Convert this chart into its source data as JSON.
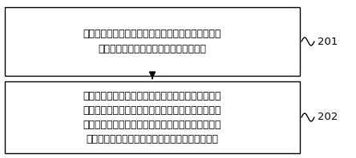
{
  "box1_text_line1": "第一压缩机和第二压缩机均运转时，实时获取第一压",
  "box1_text_line2": "缩机的当前油温和第二压缩机的当前油温",
  "box2_text_line1": "在第一压缩机的当前油温不高于第一油温阈值、且第",
  "box2_text_line2": "二压缩机的当前油温不高于第二油温阈值时，执行回",
  "box2_text_line3": "油均衡控制过程：确定第一压缩机的当前需油量和第",
  "box2_text_line4": "二压缩机的当前需油量，根据需油量控制两可控阀",
  "label1": "201",
  "label2": "202",
  "box_facecolor": "#ffffff",
  "box_edgecolor": "#000000",
  "text_color": "#000000",
  "background_color": "#ffffff",
  "fontsize": 9.0,
  "label_fontsize": 9.5,
  "fig_width": 4.44,
  "fig_height": 1.98,
  "dpi": 100
}
